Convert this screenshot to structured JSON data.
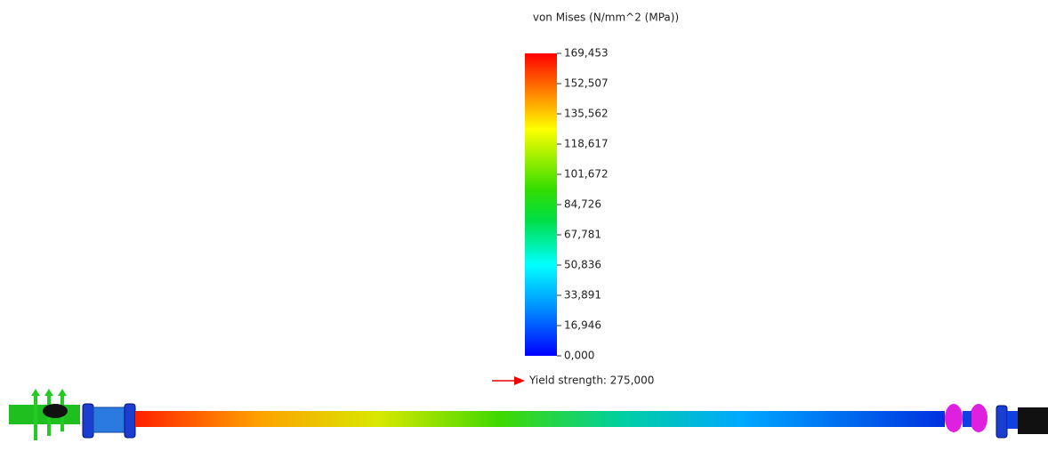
{
  "legend": {
    "title": "von Mises (N/mm^2 (MPa))",
    "labels": [
      "169,453",
      "152,507",
      "135,562",
      "118,617",
      "101,672",
      "84,726",
      "67,781",
      "50,836",
      "33,891",
      "16,946",
      "0,000"
    ]
  },
  "yield_label": "Yield strength: 275,000"
}
